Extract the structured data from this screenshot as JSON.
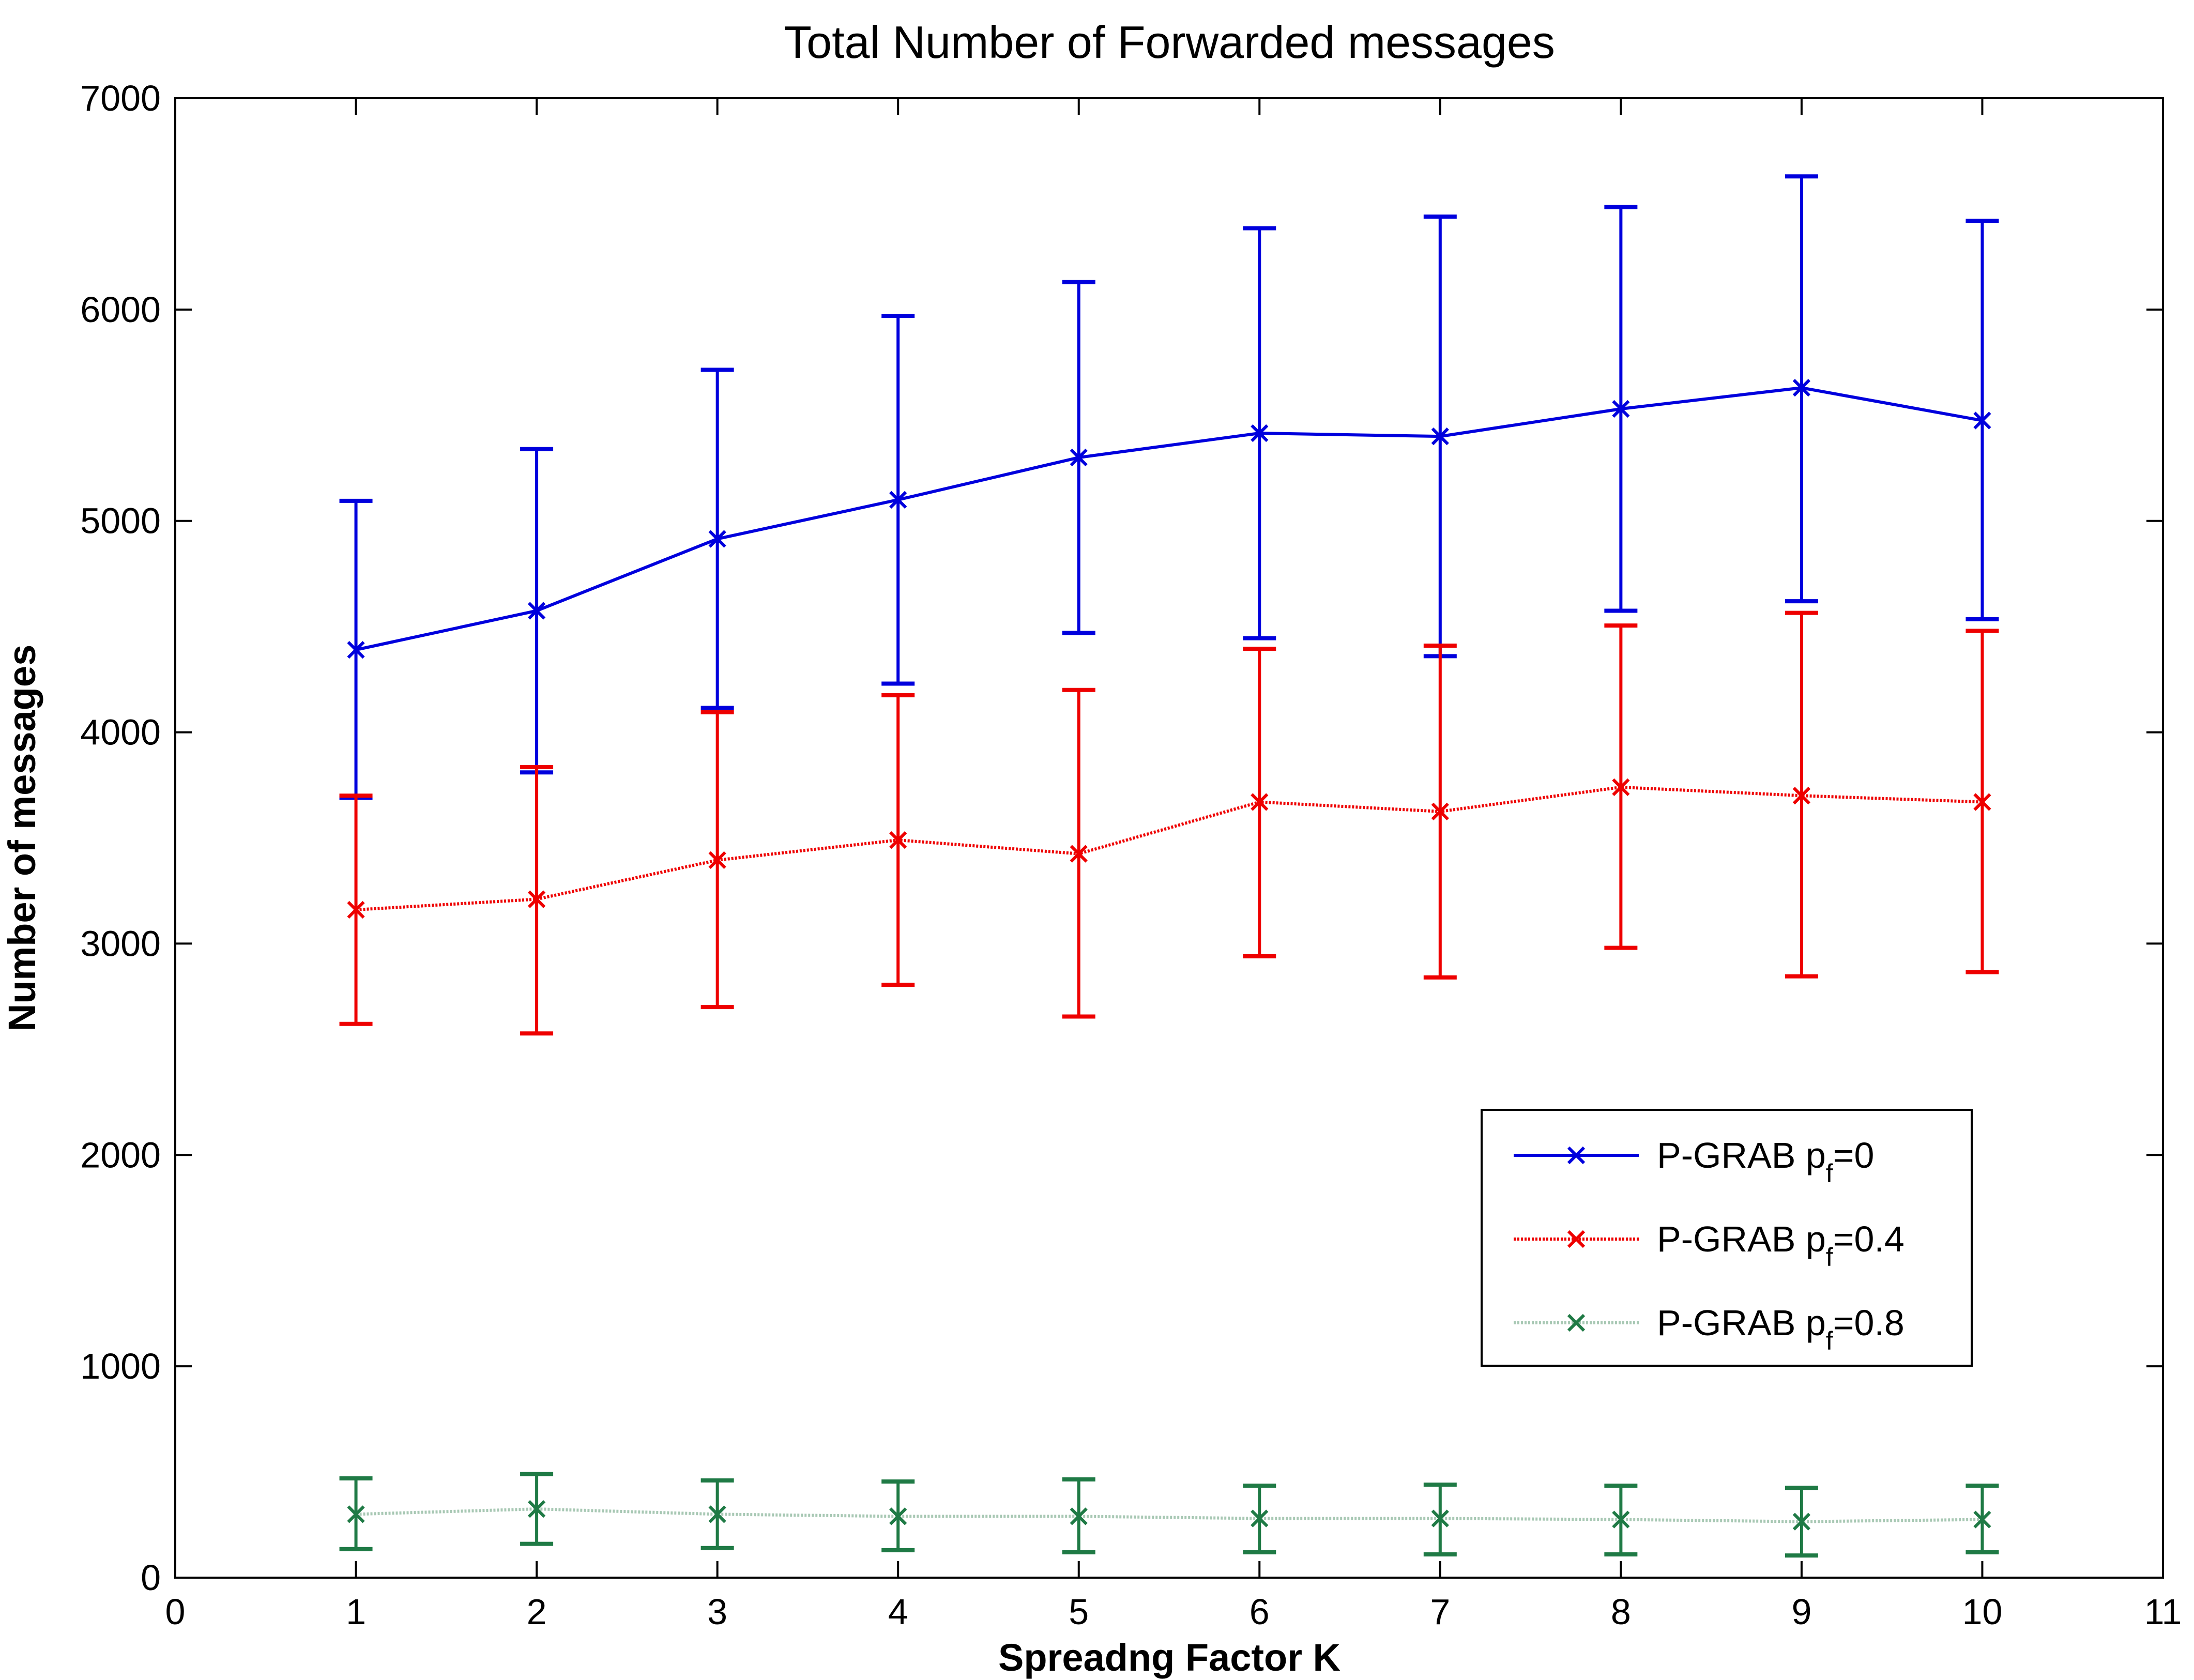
{
  "chart_data": {
    "type": "line",
    "title": "Total Number of Forwarded messages",
    "xlabel": "Spreadng Factor K",
    "ylabel": "Number of messages",
    "xlim": [
      0,
      11
    ],
    "ylim": [
      0,
      7000
    ],
    "xticks": [
      0,
      1,
      2,
      3,
      4,
      5,
      6,
      7,
      8,
      9,
      10,
      11
    ],
    "yticks": [
      0,
      1000,
      2000,
      3000,
      4000,
      5000,
      6000,
      7000
    ],
    "legend_position": "right-middle",
    "grid": false,
    "series": [
      {
        "name": "P-GRAB p_f=0",
        "legend_label": "P-GRAB p",
        "legend_subscript": "f",
        "legend_suffix": "=0",
        "color": "#0000dd",
        "line_style": "solid",
        "marker": "x",
        "x": [
          1,
          2,
          3,
          4,
          5,
          6,
          7,
          8,
          9,
          10
        ],
        "y": [
          4390,
          4575,
          4915,
          5100,
          5300,
          5415,
          5400,
          5530,
          5630,
          5475
        ],
        "y_low": [
          3690,
          3810,
          4115,
          4230,
          4470,
          4445,
          4360,
          4575,
          4620,
          4535
        ],
        "y_high": [
          5095,
          5340,
          5715,
          5970,
          6130,
          6385,
          6440,
          6485,
          6630,
          6420
        ]
      },
      {
        "name": "P-GRAB p_f=0.4",
        "legend_label": "P-GRAB p",
        "legend_subscript": "f",
        "legend_suffix": "=0.4",
        "color": "#ee0000",
        "line_style": "dotted",
        "marker": "x",
        "x": [
          1,
          2,
          3,
          4,
          5,
          6,
          7,
          8,
          9,
          10
        ],
        "y": [
          3160,
          3210,
          3395,
          3490,
          3425,
          3670,
          3625,
          3740,
          3700,
          3670
        ],
        "y_low": [
          2620,
          2575,
          2700,
          2805,
          2655,
          2940,
          2840,
          2980,
          2845,
          2865
        ],
        "y_high": [
          3700,
          3835,
          4095,
          4175,
          4200,
          4395,
          4410,
          4505,
          4565,
          4480
        ]
      },
      {
        "name": "P-GRAB p_f=0.8",
        "legend_label": "P-GRAB p",
        "legend_subscript": "f",
        "legend_suffix": "=0.8",
        "color": "#1f7a45",
        "line_color": "#a8c8b4",
        "line_style": "dotted",
        "marker": "x",
        "x": [
          1,
          2,
          3,
          4,
          5,
          6,
          7,
          8,
          9,
          10
        ],
        "y": [
          300,
          325,
          300,
          290,
          290,
          280,
          280,
          275,
          265,
          275
        ],
        "y_low": [
          135,
          160,
          140,
          130,
          120,
          120,
          110,
          110,
          105,
          120
        ],
        "y_high": [
          470,
          490,
          460,
          455,
          465,
          435,
          440,
          435,
          425,
          435
        ]
      }
    ]
  }
}
